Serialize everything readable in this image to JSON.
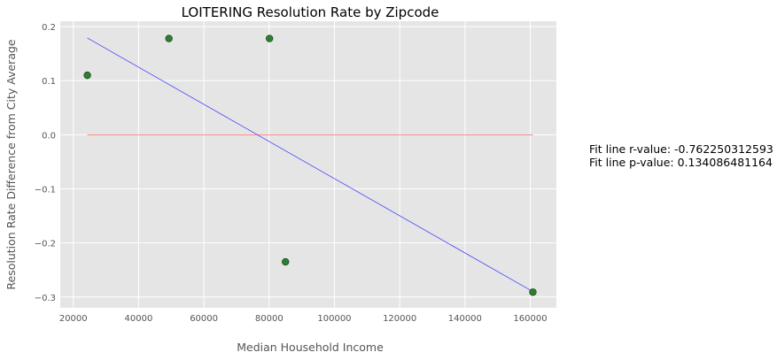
{
  "chart_data": {
    "type": "scatter",
    "title": "LOITERING Resolution Rate by Zipcode",
    "xlabel": "Median Household Income",
    "ylabel": "Resolution Rate Difference from City Average",
    "xlim": [
      16000,
      168000
    ],
    "ylim": [
      -0.32,
      0.21
    ],
    "x_ticks": [
      20000,
      40000,
      60000,
      80000,
      100000,
      120000,
      140000,
      160000
    ],
    "y_ticks": [
      0.2,
      0.1,
      0.0,
      -0.1,
      -0.2,
      -0.3
    ],
    "y_tick_labels": [
      "0.2",
      "0.1",
      "0.0",
      "−0.1",
      "−0.2",
      "−0.3"
    ],
    "points": [
      {
        "x": 24300,
        "y": 0.11
      },
      {
        "x": 49300,
        "y": 0.178
      },
      {
        "x": 80100,
        "y": 0.178
      },
      {
        "x": 85000,
        "y": -0.235
      },
      {
        "x": 160800,
        "y": -0.291
      }
    ],
    "fit_line": {
      "x": [
        24300,
        160800
      ],
      "y": [
        0.179,
        -0.29
      ]
    },
    "zero_line": {
      "x": [
        24300,
        160800
      ],
      "y": [
        0.0,
        0.0
      ]
    },
    "grid": true,
    "colors": {
      "background": "#e5e5e5",
      "grid": "#ffffff",
      "points": "#2e7d32",
      "fit_line": "#4444ff",
      "zero_line": "#ff6666"
    }
  },
  "annotations": {
    "r_value": "Fit line r-value: -0.762250312593",
    "p_value": "Fit line p-value: 0.134086481164"
  }
}
